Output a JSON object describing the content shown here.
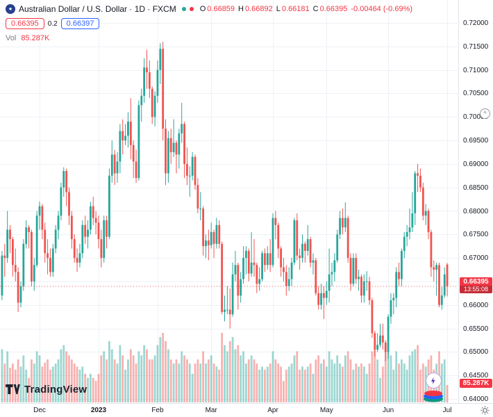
{
  "header": {
    "title": "Australian Dollar / U.S. Dollar · 1D · FXCM",
    "o_label": "O",
    "o": "0.66859",
    "h_label": "H",
    "h": "0.66892",
    "l_label": "L",
    "l": "0.66181",
    "c_label": "C",
    "c": "0.66395",
    "change": "-0.00464 (-0.69%)",
    "sell": "0.66395",
    "spread": "0.2",
    "buy": "0.66397",
    "vol_label": "Vol",
    "vol": "85.287K"
  },
  "logo": {
    "text": "TradingView"
  },
  "icons": {
    "symbol": "au-flag-icon",
    "status_dots": [
      "green-status-dot-icon",
      "red-status-dot-icon"
    ],
    "floating": [
      "lightning-icon",
      "layers-icon"
    ],
    "axis_corner": "settings-gear-icon",
    "right_edge": "plus-circle-icon"
  },
  "axis": {
    "price_labels": [
      "0.72000",
      "0.71500",
      "0.71000",
      "0.70500",
      "0.70000",
      "0.69500",
      "0.69000",
      "0.68500",
      "0.68000",
      "0.67500",
      "0.67000",
      "0.66500",
      "0.66000",
      "0.65500",
      "0.65000",
      "0.64500",
      "0.64000"
    ],
    "time_labels": [
      {
        "text": "Dec",
        "index": 14
      },
      {
        "text": "2023",
        "index": 36,
        "major": true
      },
      {
        "text": "Feb",
        "index": 58
      },
      {
        "text": "Mar",
        "index": 78
      },
      {
        "text": "Apr",
        "index": 101
      },
      {
        "text": "May",
        "index": 121
      },
      {
        "text": "Jun",
        "index": 144
      },
      {
        "text": "Jul",
        "index": 166
      }
    ],
    "last_price_label": "0.66395",
    "countdown": "13:55:08",
    "volume_label": "85.287K"
  },
  "chart_data": {
    "type": "candlestick",
    "title": "Australian Dollar / U.S. Dollar, 1D, FXCM",
    "price_range": [
      0.64,
      0.72
    ],
    "grid_step": 0.005,
    "last_price": 0.66395,
    "last_volume": "85.287K",
    "legend_position": "top-left",
    "grid": true,
    "colors": {
      "up": "#26a69a",
      "down": "#ef5350",
      "vol_up": "rgba(38,166,154,0.45)",
      "vol_down": "rgba(239,83,80,0.45)",
      "grid": "#eef1f6",
      "last_price_line": "#ef5350",
      "badge": "#f23645"
    },
    "candles_format": [
      "open",
      "high",
      "low",
      "close",
      "volume_k"
    ],
    "candles": [
      [
        0.662,
        0.6715,
        0.661,
        0.6705,
        260
      ],
      [
        0.6705,
        0.673,
        0.666,
        0.67,
        190
      ],
      [
        0.67,
        0.68,
        0.669,
        0.676,
        250
      ],
      [
        0.676,
        0.677,
        0.671,
        0.674,
        170
      ],
      [
        0.674,
        0.6745,
        0.666,
        0.6685,
        190
      ],
      [
        0.6685,
        0.672,
        0.665,
        0.667,
        160
      ],
      [
        0.667,
        0.668,
        0.6585,
        0.6605,
        210
      ],
      [
        0.6605,
        0.665,
        0.6595,
        0.664,
        175
      ],
      [
        0.664,
        0.674,
        0.663,
        0.673,
        230
      ],
      [
        0.673,
        0.678,
        0.672,
        0.6765,
        160
      ],
      [
        0.6765,
        0.677,
        0.672,
        0.6755,
        120
      ],
      [
        0.6755,
        0.676,
        0.664,
        0.665,
        210
      ],
      [
        0.665,
        0.67,
        0.663,
        0.6685,
        190
      ],
      [
        0.6685,
        0.68,
        0.668,
        0.679,
        250
      ],
      [
        0.679,
        0.682,
        0.676,
        0.681,
        230
      ],
      [
        0.681,
        0.6815,
        0.674,
        0.676,
        175
      ],
      [
        0.676,
        0.6775,
        0.669,
        0.671,
        195
      ],
      [
        0.671,
        0.674,
        0.6665,
        0.67,
        210
      ],
      [
        0.67,
        0.672,
        0.666,
        0.667,
        160
      ],
      [
        0.667,
        0.673,
        0.666,
        0.672,
        175
      ],
      [
        0.672,
        0.677,
        0.671,
        0.676,
        190
      ],
      [
        0.676,
        0.68,
        0.674,
        0.679,
        210
      ],
      [
        0.679,
        0.686,
        0.678,
        0.685,
        260
      ],
      [
        0.685,
        0.6893,
        0.683,
        0.6885,
        280
      ],
      [
        0.6885,
        0.689,
        0.681,
        0.684,
        250
      ],
      [
        0.684,
        0.685,
        0.677,
        0.679,
        230
      ],
      [
        0.679,
        0.68,
        0.672,
        0.674,
        210
      ],
      [
        0.674,
        0.675,
        0.669,
        0.67,
        190
      ],
      [
        0.67,
        0.672,
        0.667,
        0.669,
        175
      ],
      [
        0.669,
        0.673,
        0.668,
        0.671,
        160
      ],
      [
        0.671,
        0.678,
        0.67,
        0.677,
        175
      ],
      [
        0.677,
        0.679,
        0.673,
        0.6745,
        140
      ],
      [
        0.6745,
        0.678,
        0.672,
        0.676,
        120
      ],
      [
        0.676,
        0.682,
        0.675,
        0.681,
        140
      ],
      [
        0.681,
        0.683,
        0.677,
        0.6785,
        120
      ],
      [
        0.6785,
        0.68,
        0.675,
        0.6775,
        105
      ],
      [
        0.6775,
        0.679,
        0.672,
        0.674,
        140
      ],
      [
        0.674,
        0.676,
        0.668,
        0.67,
        230
      ],
      [
        0.67,
        0.679,
        0.669,
        0.678,
        250
      ],
      [
        0.678,
        0.679,
        0.672,
        0.6745,
        210
      ],
      [
        0.6745,
        0.689,
        0.674,
        0.6875,
        300
      ],
      [
        0.6875,
        0.695,
        0.686,
        0.692,
        260
      ],
      [
        0.692,
        0.693,
        0.6855,
        0.688,
        210
      ],
      [
        0.688,
        0.6925,
        0.686,
        0.6905,
        190
      ],
      [
        0.6905,
        0.6985,
        0.688,
        0.697,
        280
      ],
      [
        0.697,
        0.6995,
        0.692,
        0.695,
        230
      ],
      [
        0.695,
        0.6985,
        0.694,
        0.696,
        160
      ],
      [
        0.696,
        0.701,
        0.6935,
        0.699,
        210
      ],
      [
        0.699,
        0.704,
        0.691,
        0.694,
        260
      ],
      [
        0.694,
        0.695,
        0.687,
        0.6905,
        230
      ],
      [
        0.6905,
        0.693,
        0.686,
        0.687,
        190
      ],
      [
        0.687,
        0.7035,
        0.6865,
        0.7025,
        250
      ],
      [
        0.7025,
        0.706,
        0.699,
        0.7045,
        230
      ],
      [
        0.7045,
        0.7125,
        0.703,
        0.7105,
        280
      ],
      [
        0.7105,
        0.7143,
        0.706,
        0.7095,
        260
      ],
      [
        0.7095,
        0.712,
        0.704,
        0.706,
        210
      ],
      [
        0.706,
        0.7065,
        0.6985,
        0.7,
        210
      ],
      [
        0.7,
        0.7055,
        0.698,
        0.7045,
        230
      ],
      [
        0.7045,
        0.712,
        0.703,
        0.71,
        280
      ],
      [
        0.71,
        0.7157,
        0.707,
        0.7145,
        320
      ],
      [
        0.7145,
        0.716,
        0.695,
        0.6975,
        340
      ],
      [
        0.6975,
        0.6995,
        0.6855,
        0.688,
        300
      ],
      [
        0.688,
        0.697,
        0.686,
        0.6955,
        260
      ],
      [
        0.6955,
        0.6975,
        0.69,
        0.6925,
        210
      ],
      [
        0.6925,
        0.6995,
        0.6915,
        0.6945,
        190
      ],
      [
        0.6945,
        0.695,
        0.688,
        0.692,
        210
      ],
      [
        0.692,
        0.6975,
        0.689,
        0.6965,
        190
      ],
      [
        0.6965,
        0.703,
        0.6945,
        0.6985,
        250
      ],
      [
        0.6985,
        0.699,
        0.687,
        0.69,
        230
      ],
      [
        0.69,
        0.6935,
        0.6855,
        0.6875,
        210
      ],
      [
        0.6875,
        0.6895,
        0.683,
        0.6875,
        190
      ],
      [
        0.6875,
        0.6925,
        0.6865,
        0.6915,
        140
      ],
      [
        0.6915,
        0.692,
        0.6845,
        0.6855,
        190
      ],
      [
        0.6855,
        0.687,
        0.6795,
        0.6805,
        210
      ],
      [
        0.6805,
        0.684,
        0.678,
        0.6805,
        190
      ],
      [
        0.6805,
        0.681,
        0.6705,
        0.6725,
        250
      ],
      [
        0.6725,
        0.675,
        0.67,
        0.6737,
        190
      ],
      [
        0.6737,
        0.676,
        0.6695,
        0.6727,
        210
      ],
      [
        0.6727,
        0.6775,
        0.672,
        0.6755,
        230
      ],
      [
        0.6755,
        0.676,
        0.67,
        0.673,
        190
      ],
      [
        0.673,
        0.6785,
        0.672,
        0.677,
        175
      ],
      [
        0.677,
        0.678,
        0.672,
        0.673,
        160
      ],
      [
        0.673,
        0.6735,
        0.658,
        0.6585,
        340
      ],
      [
        0.6585,
        0.662,
        0.6565,
        0.659,
        280
      ],
      [
        0.659,
        0.664,
        0.658,
        0.659,
        250
      ],
      [
        0.659,
        0.6635,
        0.655,
        0.658,
        300
      ],
      [
        0.658,
        0.669,
        0.6575,
        0.6665,
        320
      ],
      [
        0.6665,
        0.6715,
        0.665,
        0.6685,
        260
      ],
      [
        0.6685,
        0.669,
        0.659,
        0.662,
        280
      ],
      [
        0.662,
        0.667,
        0.6605,
        0.6655,
        230
      ],
      [
        0.6655,
        0.6725,
        0.6645,
        0.67,
        250
      ],
      [
        0.67,
        0.6725,
        0.6665,
        0.6715,
        190
      ],
      [
        0.6715,
        0.672,
        0.665,
        0.6667,
        210
      ],
      [
        0.6667,
        0.6755,
        0.666,
        0.669,
        230
      ],
      [
        0.669,
        0.674,
        0.666,
        0.6685,
        210
      ],
      [
        0.6685,
        0.669,
        0.6625,
        0.6645,
        190
      ],
      [
        0.6645,
        0.668,
        0.663,
        0.6655,
        160
      ],
      [
        0.6655,
        0.6715,
        0.665,
        0.671,
        175
      ],
      [
        0.671,
        0.672,
        0.667,
        0.6685,
        160
      ],
      [
        0.6685,
        0.6725,
        0.6675,
        0.671,
        175
      ],
      [
        0.671,
        0.674,
        0.667,
        0.6685,
        190
      ],
      [
        0.6685,
        0.6795,
        0.668,
        0.6785,
        250
      ],
      [
        0.6785,
        0.68,
        0.674,
        0.677,
        210
      ],
      [
        0.677,
        0.6775,
        0.67,
        0.672,
        190
      ],
      [
        0.672,
        0.6725,
        0.666,
        0.668,
        175
      ],
      [
        0.668,
        0.67,
        0.665,
        0.667,
        105
      ],
      [
        0.667,
        0.6685,
        0.662,
        0.664,
        160
      ],
      [
        0.664,
        0.668,
        0.663,
        0.6655,
        175
      ],
      [
        0.6655,
        0.67,
        0.664,
        0.669,
        190
      ],
      [
        0.669,
        0.6785,
        0.6685,
        0.678,
        230
      ],
      [
        0.678,
        0.6795,
        0.6695,
        0.6705,
        250
      ],
      [
        0.6705,
        0.672,
        0.6675,
        0.67,
        160
      ],
      [
        0.67,
        0.675,
        0.669,
        0.673,
        175
      ],
      [
        0.673,
        0.6735,
        0.669,
        0.6715,
        160
      ],
      [
        0.6715,
        0.677,
        0.6705,
        0.674,
        175
      ],
      [
        0.674,
        0.6745,
        0.668,
        0.669,
        190
      ],
      [
        0.669,
        0.671,
        0.6665,
        0.6695,
        140
      ],
      [
        0.6695,
        0.67,
        0.662,
        0.6625,
        210
      ],
      [
        0.6625,
        0.664,
        0.659,
        0.66,
        230
      ],
      [
        0.66,
        0.6645,
        0.659,
        0.6625,
        190
      ],
      [
        0.6625,
        0.664,
        0.657,
        0.6615,
        210
      ],
      [
        0.6615,
        0.665,
        0.66,
        0.663,
        175
      ],
      [
        0.663,
        0.672,
        0.6605,
        0.6665,
        250
      ],
      [
        0.6665,
        0.669,
        0.664,
        0.667,
        210
      ],
      [
        0.667,
        0.671,
        0.665,
        0.6695,
        190
      ],
      [
        0.6695,
        0.676,
        0.669,
        0.675,
        230
      ],
      [
        0.675,
        0.68,
        0.674,
        0.6785,
        190
      ],
      [
        0.6785,
        0.6805,
        0.675,
        0.6765,
        175
      ],
      [
        0.6765,
        0.6818,
        0.6755,
        0.6785,
        230
      ],
      [
        0.6785,
        0.679,
        0.669,
        0.67,
        250
      ],
      [
        0.67,
        0.671,
        0.663,
        0.6645,
        210
      ],
      [
        0.6645,
        0.671,
        0.664,
        0.67,
        160
      ],
      [
        0.67,
        0.671,
        0.6645,
        0.6655,
        190
      ],
      [
        0.6655,
        0.6675,
        0.663,
        0.666,
        175
      ],
      [
        0.666,
        0.6665,
        0.6605,
        0.662,
        190
      ],
      [
        0.662,
        0.6665,
        0.6605,
        0.665,
        175
      ],
      [
        0.665,
        0.6672,
        0.663,
        0.665,
        140
      ],
      [
        0.665,
        0.666,
        0.66,
        0.661,
        190
      ],
      [
        0.661,
        0.6615,
        0.653,
        0.654,
        250
      ],
      [
        0.654,
        0.6545,
        0.649,
        0.6505,
        260
      ],
      [
        0.6505,
        0.654,
        0.65,
        0.6515,
        210
      ],
      [
        0.6515,
        0.656,
        0.651,
        0.6535,
        120
      ],
      [
        0.6535,
        0.656,
        0.6505,
        0.652,
        175
      ],
      [
        0.652,
        0.6525,
        0.648,
        0.65,
        280
      ],
      [
        0.65,
        0.658,
        0.6485,
        0.6575,
        250
      ],
      [
        0.6575,
        0.6625,
        0.656,
        0.661,
        230
      ],
      [
        0.661,
        0.6625,
        0.658,
        0.6615,
        160
      ],
      [
        0.6615,
        0.668,
        0.6595,
        0.667,
        250
      ],
      [
        0.667,
        0.669,
        0.664,
        0.6655,
        190
      ],
      [
        0.6655,
        0.672,
        0.664,
        0.6715,
        210
      ],
      [
        0.6715,
        0.6755,
        0.67,
        0.6745,
        190
      ],
      [
        0.6745,
        0.677,
        0.6725,
        0.6755,
        160
      ],
      [
        0.6755,
        0.6805,
        0.674,
        0.6765,
        230
      ],
      [
        0.6765,
        0.684,
        0.6755,
        0.6795,
        250
      ],
      [
        0.6795,
        0.6885,
        0.677,
        0.688,
        260
      ],
      [
        0.688,
        0.69,
        0.684,
        0.6875,
        280
      ],
      [
        0.6875,
        0.689,
        0.684,
        0.685,
        160
      ],
      [
        0.685,
        0.686,
        0.678,
        0.679,
        190
      ],
      [
        0.679,
        0.6815,
        0.677,
        0.68,
        175
      ],
      [
        0.68,
        0.6805,
        0.674,
        0.6755,
        210
      ],
      [
        0.6755,
        0.676,
        0.666,
        0.668,
        230
      ],
      [
        0.668,
        0.6695,
        0.665,
        0.6675,
        160
      ],
      [
        0.6675,
        0.669,
        0.662,
        0.6685,
        190
      ],
      [
        0.6685,
        0.669,
        0.6595,
        0.66,
        250
      ],
      [
        0.66,
        0.664,
        0.659,
        0.662,
        190
      ],
      [
        0.662,
        0.668,
        0.6615,
        0.6665,
        210
      ],
      [
        0.66859,
        0.66892,
        0.66181,
        0.66395,
        85.287
      ]
    ]
  }
}
